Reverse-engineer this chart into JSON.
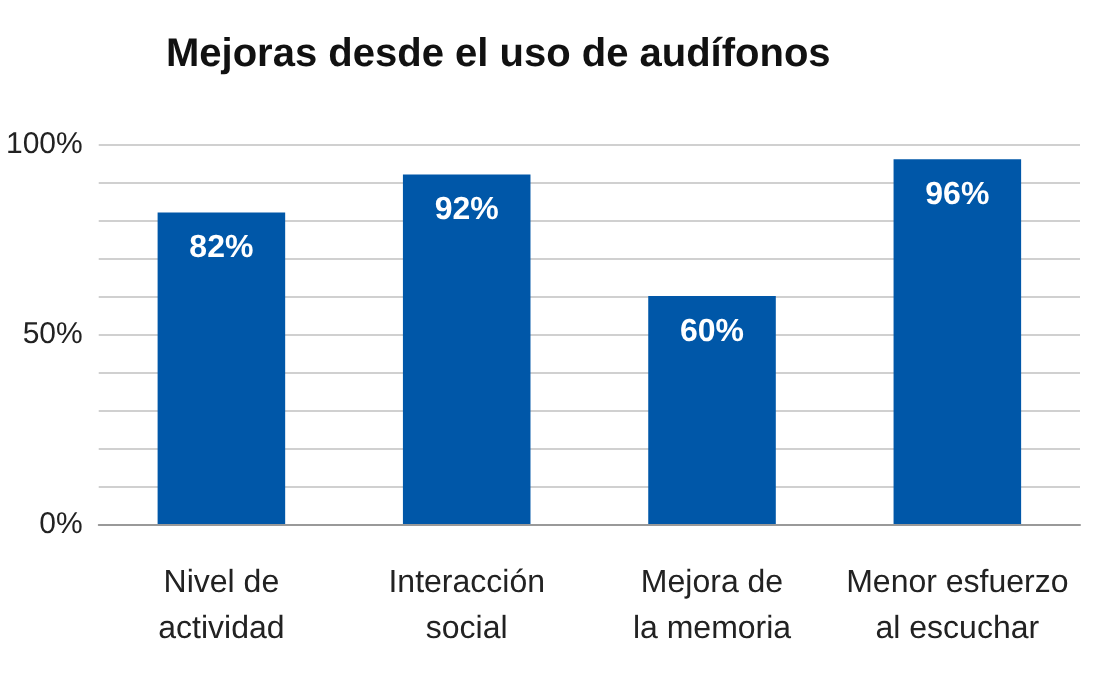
{
  "chart_data": {
    "type": "bar",
    "title": "Mejoras desde el uso de audífonos",
    "categories": [
      "Nivel de\nactividad",
      "Interacción\nsocial",
      "Mejora de\nla memoria",
      "Menor esfuerzo\nal escuchar"
    ],
    "values": [
      82,
      92,
      60,
      96
    ],
    "value_labels": [
      "82%",
      "92%",
      "60%",
      "96%"
    ],
    "color": "#0057a8",
    "ylim": [
      0,
      100
    ],
    "yticks": [
      {
        "value": 0,
        "label": "0%"
      },
      {
        "value": 10,
        "label": null
      },
      {
        "value": 20,
        "label": null
      },
      {
        "value": 30,
        "label": null
      },
      {
        "value": 40,
        "label": null
      },
      {
        "value": 50,
        "label": "50%"
      },
      {
        "value": 60,
        "label": null
      },
      {
        "value": 70,
        "label": null
      },
      {
        "value": 80,
        "label": null
      },
      {
        "value": 90,
        "label": null
      },
      {
        "value": 100,
        "label": "100%"
      }
    ],
    "grid": "y"
  }
}
